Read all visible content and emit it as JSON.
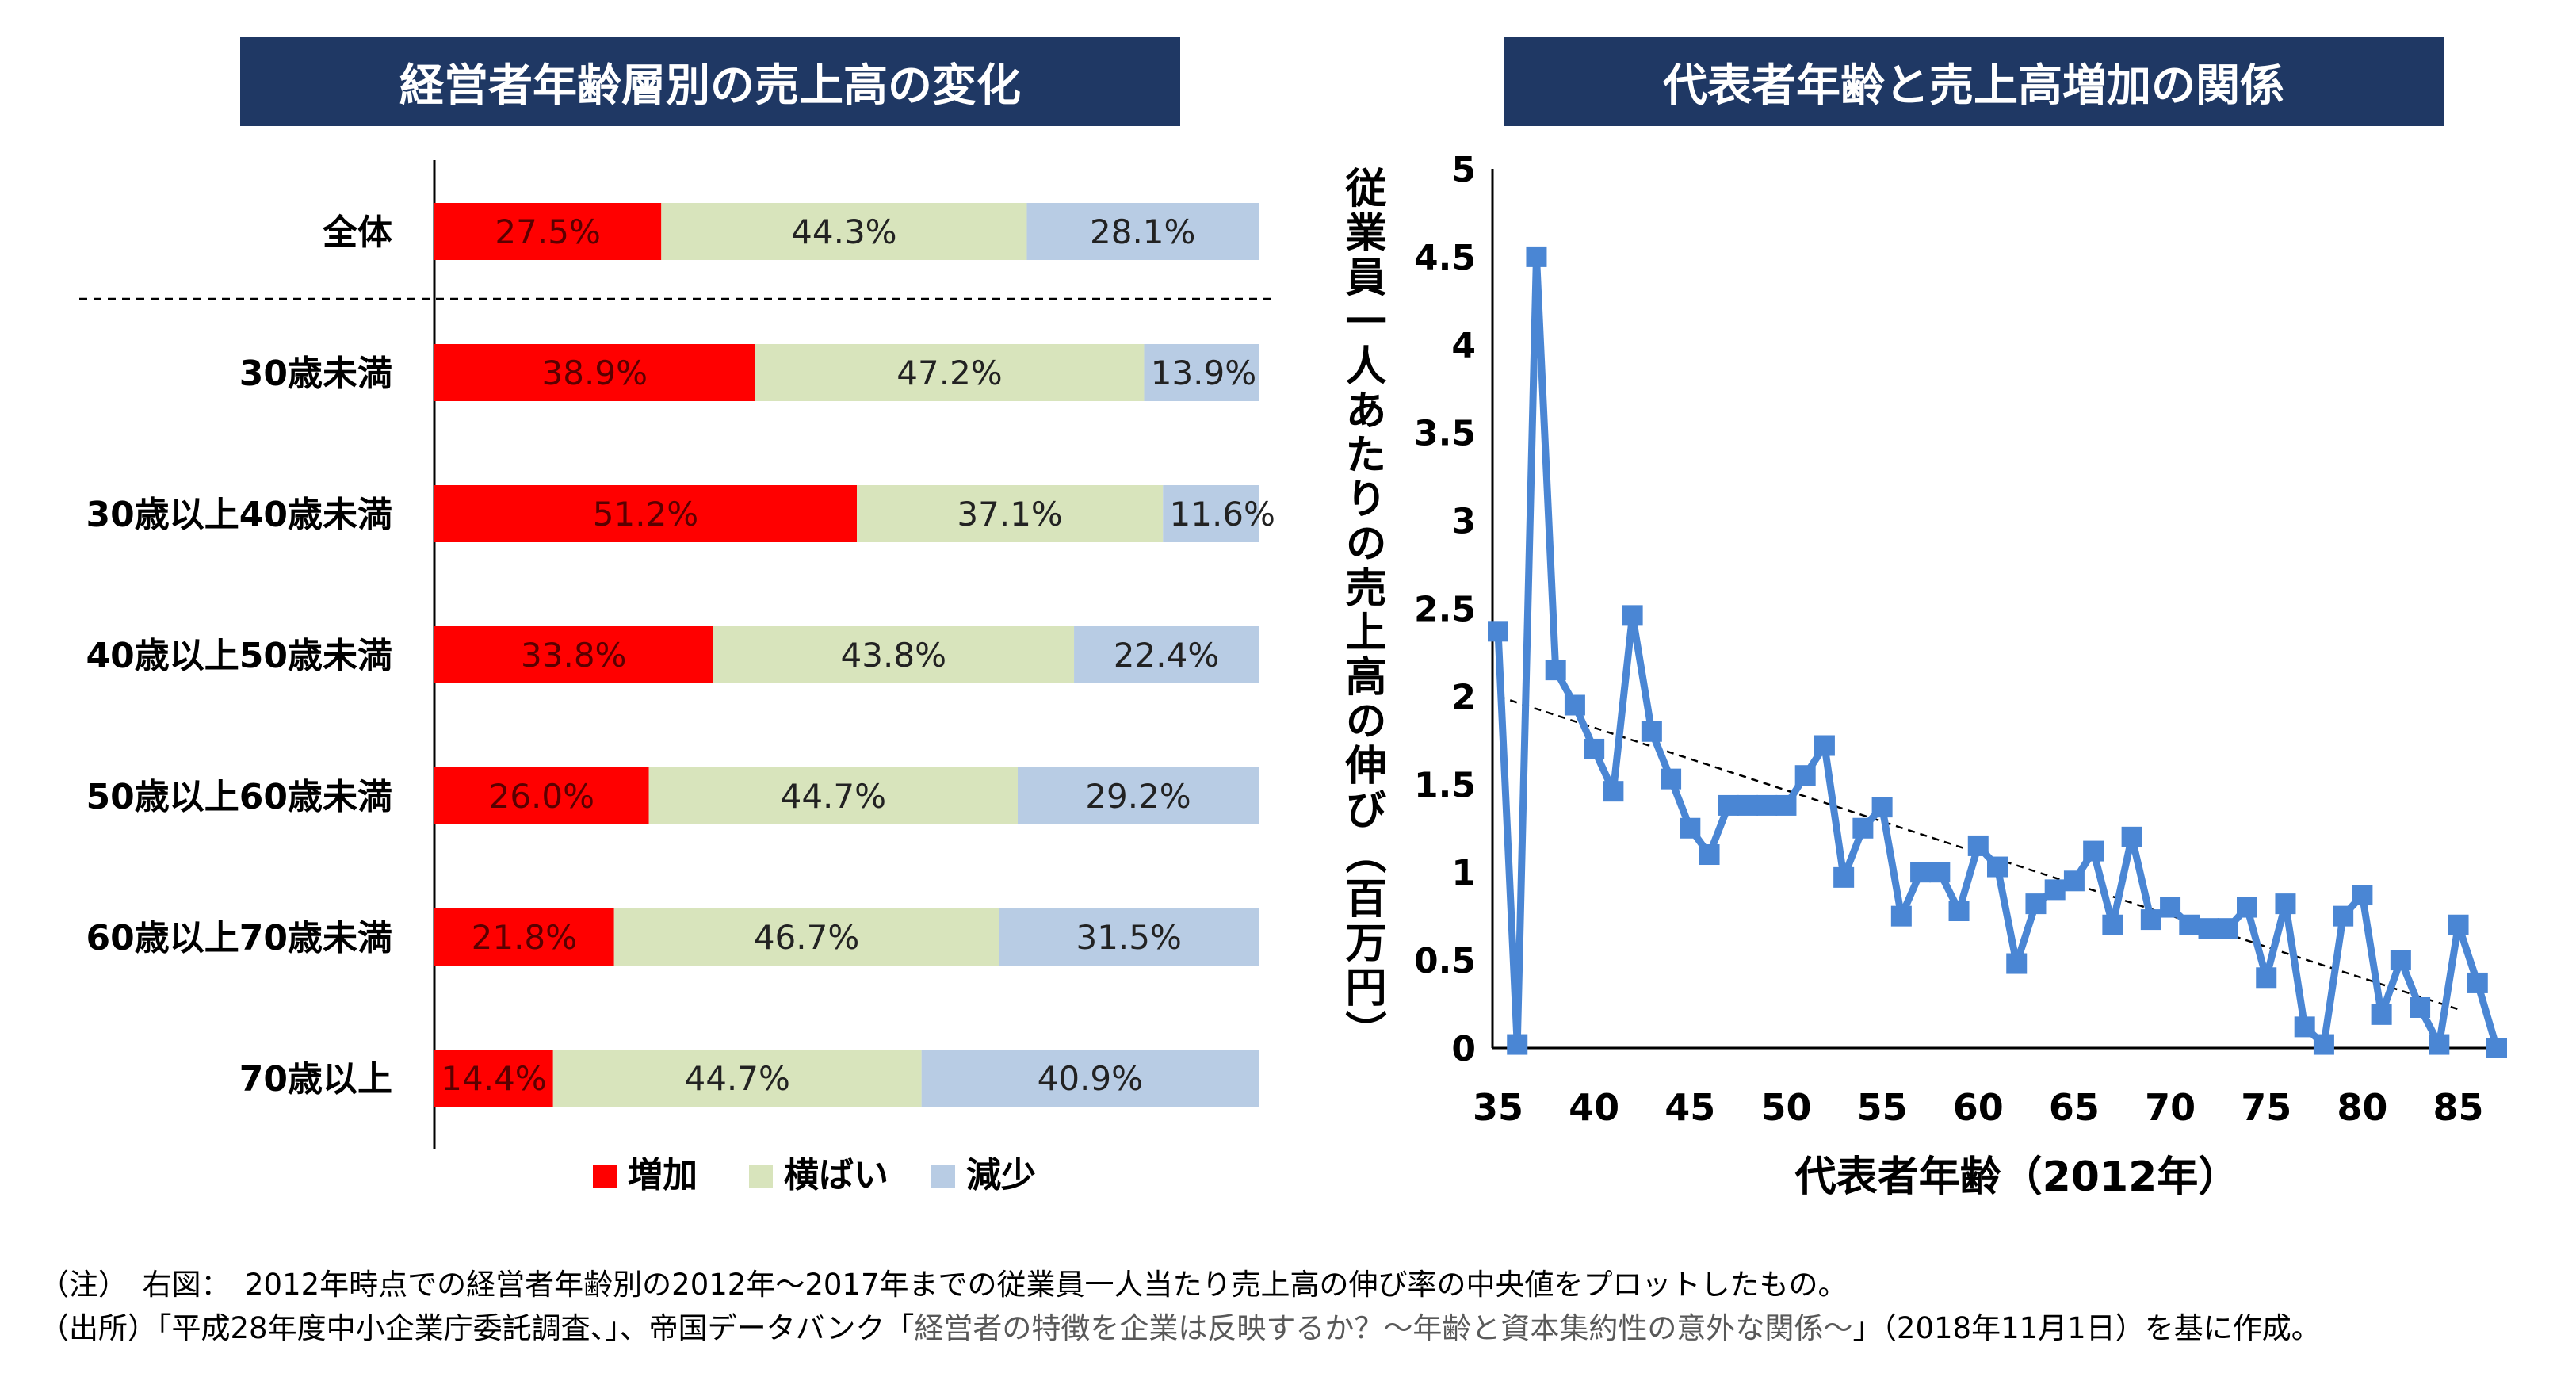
{
  "left_title": "経営者年齢層別の売上高の変化",
  "right_title": "代表者年齢と売上高増加の関係",
  "notes": {
    "line1": "（注）　右図：　2012年時点での経営者年齢別の2012年～2017年までの従業員一人当たり売上高の伸び率の中央値をプロットしたもの。",
    "line2_a": "（出所）「平成28年度中小企業庁委託調査、」、帝国データバンク「",
    "line2_b": "経営者の特徴を企業は反映するか？～年齢と資本集約性の意外な関係～",
    "line2_c": "」（2018年11月1日）を基に作成。"
  },
  "colors": {
    "increase": "#ff0000",
    "flat": "#d8e4bc",
    "decrease": "#b8cce4",
    "line": "#4a86d4",
    "title_bg": "#1f3864"
  },
  "chart_data": [
    {
      "type": "bar",
      "orientation": "horizontal",
      "stacked": "percent",
      "categories": [
        "全体",
        "30歳未満",
        "30歳以上40歳未満",
        "40歳以上50歳未満",
        "50歳以上60歳未満",
        "60歳以上70歳未満",
        "70歳以上"
      ],
      "series": [
        {
          "name": "増加",
          "values": [
            27.5,
            38.9,
            51.2,
            33.8,
            26.0,
            21.8,
            14.4
          ],
          "labels": [
            "27.5%",
            "38.9%",
            "51.2%",
            "33.8%",
            "26.0%",
            "21.8%",
            "14.4%"
          ]
        },
        {
          "name": "横ばい",
          "values": [
            44.3,
            47.2,
            37.1,
            43.8,
            44.7,
            46.7,
            44.7
          ],
          "labels": [
            "44.3%",
            "47.2%",
            "37.1%",
            "43.8%",
            "44.7%",
            "46.7%",
            "44.7%"
          ]
        },
        {
          "name": "減少",
          "values": [
            28.1,
            13.9,
            11.6,
            22.4,
            29.2,
            31.5,
            40.9
          ],
          "labels": [
            "28.1%",
            "13.9%",
            "11.6%",
            "22.4%",
            "29.2%",
            "31.5%",
            "40.9%"
          ]
        }
      ],
      "legend_position": "bottom",
      "separator_after_category": "全体"
    },
    {
      "type": "line",
      "xlabel": "代表者年齢（2012年）",
      "ylabel": "従業員一人あたりの売上高の伸び（百万円）",
      "xlim": [
        35,
        87
      ],
      "ylim": [
        0,
        5
      ],
      "xticks": [
        "35",
        "40",
        "45",
        "50",
        "55",
        "60",
        "65",
        "70",
        "75",
        "80",
        "85"
      ],
      "yticks": [
        "0",
        "0.5",
        "1",
        "1.5",
        "2",
        "2.5",
        "3",
        "3.5",
        "4",
        "4.5",
        "5"
      ],
      "grid": false,
      "x": [
        35,
        36,
        37,
        38,
        39,
        40,
        41,
        42,
        43,
        44,
        45,
        46,
        47,
        48,
        49,
        50,
        51,
        52,
        53,
        54,
        55,
        56,
        57,
        58,
        59,
        60,
        61,
        62,
        63,
        64,
        65,
        66,
        67,
        68,
        69,
        70,
        71,
        72,
        73,
        74,
        75,
        76,
        77,
        78,
        79,
        80,
        81,
        82,
        83,
        84,
        85,
        86,
        87
      ],
      "y": [
        2.37,
        0.02,
        4.5,
        2.15,
        1.95,
        1.7,
        1.46,
        2.46,
        1.8,
        1.53,
        1.25,
        1.1,
        1.38,
        1.38,
        1.38,
        1.38,
        1.55,
        1.72,
        0.97,
        1.25,
        1.37,
        0.75,
        1.0,
        1.0,
        0.78,
        1.15,
        1.03,
        0.48,
        0.82,
        0.9,
        0.95,
        1.12,
        0.7,
        1.2,
        0.73,
        0.8,
        0.7,
        0.68,
        0.68,
        0.8,
        0.4,
        0.82,
        0.12,
        0.02,
        0.75,
        0.87,
        0.19,
        0.5,
        0.23,
        0.02,
        0.7,
        0.37,
        0.0
      ],
      "trendline": {
        "type": "linear",
        "x": [
          35,
          85
        ],
        "y": [
          2.0,
          0.22
        ]
      }
    }
  ]
}
